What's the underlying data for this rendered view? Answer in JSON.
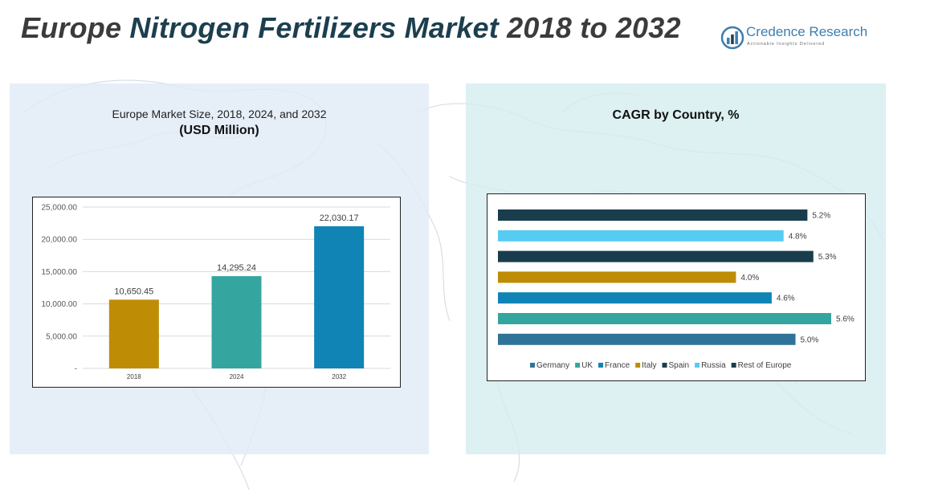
{
  "header": {
    "title_part1": "Europe ",
    "title_part2": "Nitrogen Fertilizers Market ",
    "title_part3": "2018 to 2032",
    "logo_name": "Credence Research",
    "logo_tagline": "Actionable Insights Delivered"
  },
  "colors": {
    "title_dark": "#3b3b3b",
    "title_accent": "#1c3f4f",
    "brand_blue": "#3d7eaf"
  },
  "chart_data": [
    {
      "type": "bar",
      "title": "Europe Market Size, 2018, 2024, and 2032",
      "subtitle": "(USD Million)",
      "categories": [
        "2018",
        "2024",
        "2032"
      ],
      "values": [
        10650.45,
        14295.24,
        22030.17
      ],
      "value_labels": [
        "10,650.45",
        "14,295.24",
        "22,030.17"
      ],
      "colors": [
        "#bf8c06",
        "#34a59f",
        "#0f84b5"
      ],
      "ylim": [
        0,
        25000
      ],
      "yticks": [
        0,
        5000,
        10000,
        15000,
        20000,
        25000
      ],
      "ytick_labels": [
        "-",
        "5,000.00",
        "10,000.00",
        "15,000.00",
        "20,000.00",
        "25,000.00"
      ],
      "grid": true,
      "legend": "none"
    },
    {
      "type": "bar",
      "orientation": "horizontal",
      "title": "CAGR by Country, %",
      "series": [
        {
          "name": "Germany",
          "value": 5.0,
          "label": "5.0%",
          "color": "#2f7498"
        },
        {
          "name": "UK",
          "value": 5.6,
          "label": "5.6%",
          "color": "#34a59f"
        },
        {
          "name": "France",
          "value": 4.6,
          "label": "4.6%",
          "color": "#0f84b5"
        },
        {
          "name": "Italy",
          "value": 4.0,
          "label": "4.0%",
          "color": "#bf8c06"
        },
        {
          "name": "Spain",
          "value": 5.3,
          "label": "5.3%",
          "color": "#1a3d4d"
        },
        {
          "name": "Russia",
          "value": 4.8,
          "label": "4.8%",
          "color": "#56ccf2"
        },
        {
          "name": "Rest of Europe",
          "value": 5.2,
          "label": "5.2%",
          "color": "#1a3d4d"
        }
      ],
      "grid": false,
      "legend": "bottom"
    }
  ]
}
